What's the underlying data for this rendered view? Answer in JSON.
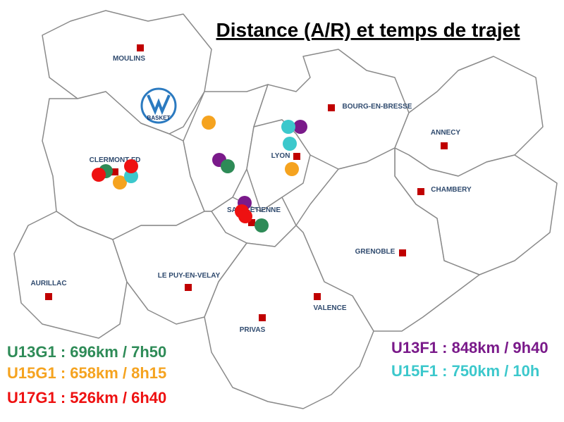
{
  "title": "Distance (A/R) et temps de trajet",
  "logo": "BASKET",
  "cities": [
    "MOULINS",
    "BOURG-EN-BRESSE",
    "ANNECY",
    "CLERMONT-FD",
    "LYON",
    "CHAMBERY",
    "SAINT-ETIENNE",
    "GRENOBLE",
    "AURILLAC",
    "LE PUY-EN-VELAY",
    "VALENCE",
    "PRIVAS"
  ],
  "legend": [
    {
      "text": "U13G1 : 696km / 7h50",
      "color": "#2e8b57"
    },
    {
      "text": "U15G1 : 658km / 8h15",
      "color": "#f5a31f"
    },
    {
      "text": "U17G1 : 526km / 6h40",
      "color": "#ee1111"
    },
    {
      "text": "U13F1 : 848km / 9h40",
      "color": "#7a1a8a"
    },
    {
      "text": "U15F1 : 750km / 10h",
      "color": "#3cc8cc"
    }
  ]
}
